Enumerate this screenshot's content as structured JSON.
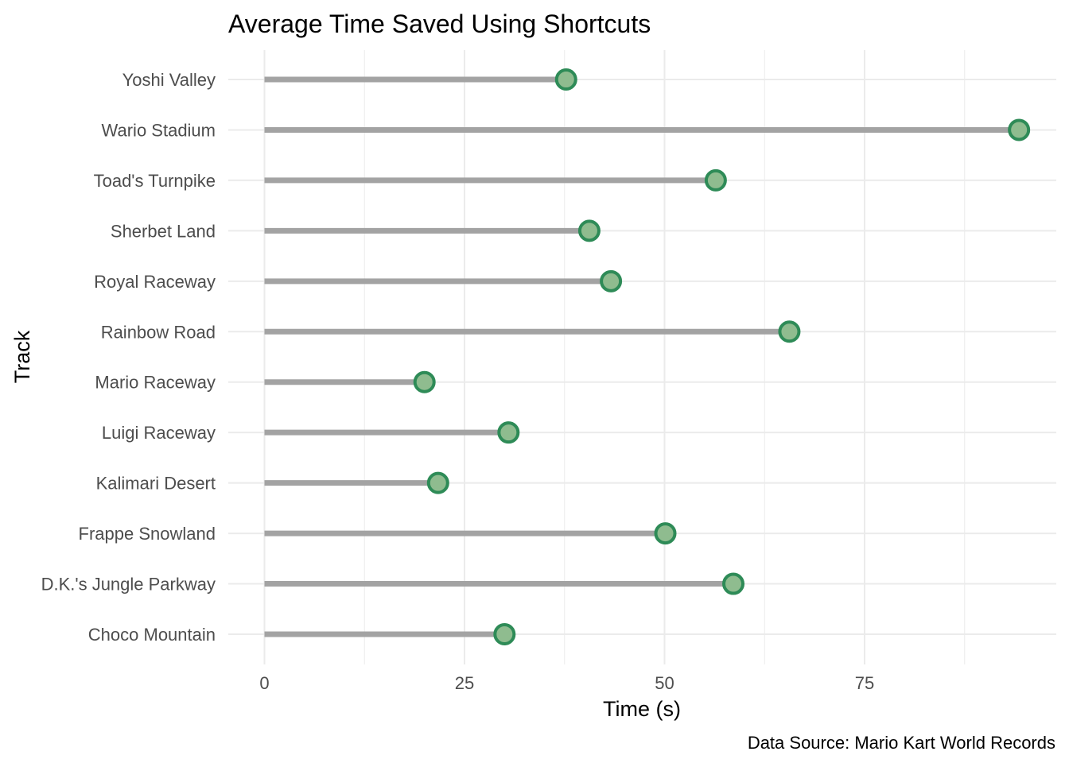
{
  "chart_data": {
    "type": "lollipop",
    "title": "Average Time Saved Using Shortcuts",
    "xlabel": "Time (s)",
    "ylabel": "Track",
    "caption": "Data Source: Mario Kart World Records",
    "xlim": [
      0,
      100
    ],
    "x_ticks": [
      0,
      25,
      50,
      75
    ],
    "x_tick_labels": [
      "0",
      "25",
      "50",
      "75"
    ],
    "categories": [
      "Choco Mountain",
      "D.K.'s Jungle Parkway",
      "Frappe Snowland",
      "Kalimari Desert",
      "Luigi Raceway",
      "Mario Raceway",
      "Rainbow Road",
      "Royal Raceway",
      "Sherbet Land",
      "Toad's Turnpike",
      "Wario Stadium",
      "Yoshi Valley"
    ],
    "values": [
      30.0,
      58.6,
      50.1,
      21.7,
      30.5,
      20.0,
      65.6,
      43.3,
      40.6,
      56.4,
      94.3,
      37.7
    ],
    "grid": true,
    "colors": {
      "segment": "#a3a3a3",
      "point_fill": "#8fbc8f",
      "point_stroke": "#2e8b57",
      "grid": "#ebebeb"
    }
  }
}
